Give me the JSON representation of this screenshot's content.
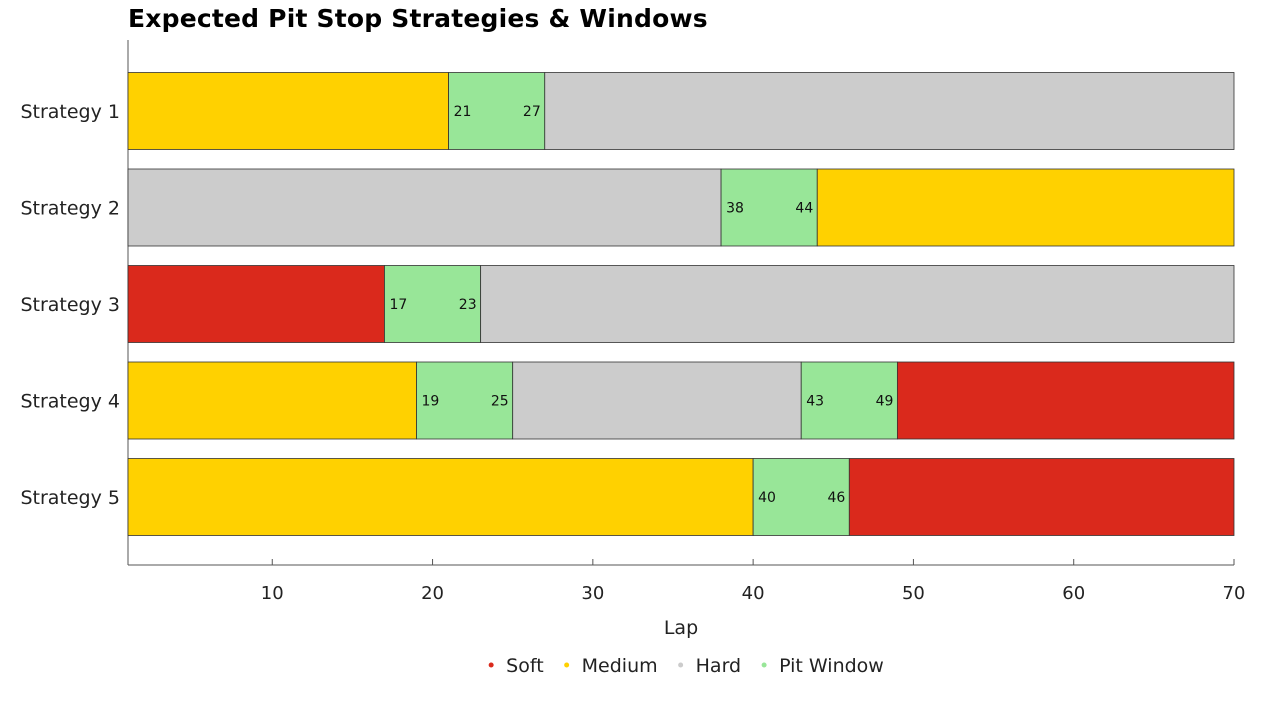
{
  "chart_data": {
    "type": "bar",
    "orientation": "horizontal-stacked",
    "title": "Expected Pit Stop Strategies & Windows",
    "xlabel": "Lap",
    "xlim": [
      1,
      70
    ],
    "xticks": [
      10,
      20,
      30,
      40,
      50,
      60,
      70
    ],
    "categories": [
      "Strategy 1",
      "Strategy 2",
      "Strategy 3",
      "Strategy 4",
      "Strategy 5"
    ],
    "legend_position": "bottom",
    "legend": [
      {
        "key": "soft",
        "label": "Soft",
        "color": "#DA291C"
      },
      {
        "key": "medium",
        "label": "Medium",
        "color": "#FFD100"
      },
      {
        "key": "hard",
        "label": "Hard",
        "color": "#CCCCCC"
      },
      {
        "key": "pit",
        "label": "Pit Window",
        "color": "#98E698"
      }
    ],
    "strategies": [
      {
        "name": "Strategy 1",
        "segments": [
          {
            "compound": "medium",
            "start": 1,
            "end": 21
          },
          {
            "compound": "pit",
            "start": 21,
            "end": 27
          },
          {
            "compound": "hard",
            "start": 27,
            "end": 70
          }
        ]
      },
      {
        "name": "Strategy 2",
        "segments": [
          {
            "compound": "hard",
            "start": 1,
            "end": 38
          },
          {
            "compound": "pit",
            "start": 38,
            "end": 44
          },
          {
            "compound": "medium",
            "start": 44,
            "end": 70
          }
        ]
      },
      {
        "name": "Strategy 3",
        "segments": [
          {
            "compound": "soft",
            "start": 1,
            "end": 17
          },
          {
            "compound": "pit",
            "start": 17,
            "end": 23
          },
          {
            "compound": "hard",
            "start": 23,
            "end": 70
          }
        ]
      },
      {
        "name": "Strategy 4",
        "segments": [
          {
            "compound": "medium",
            "start": 1,
            "end": 19
          },
          {
            "compound": "pit",
            "start": 19,
            "end": 25
          },
          {
            "compound": "hard",
            "start": 25,
            "end": 43
          },
          {
            "compound": "pit",
            "start": 43,
            "end": 49
          },
          {
            "compound": "soft",
            "start": 49,
            "end": 70
          }
        ]
      },
      {
        "name": "Strategy 5",
        "segments": [
          {
            "compound": "medium",
            "start": 1,
            "end": 40
          },
          {
            "compound": "pit",
            "start": 40,
            "end": 46
          },
          {
            "compound": "soft",
            "start": 46,
            "end": 70
          }
        ]
      }
    ]
  }
}
